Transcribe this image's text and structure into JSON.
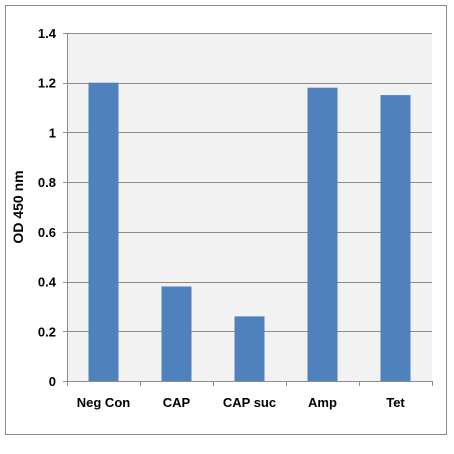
{
  "chart_data": {
    "type": "bar",
    "title": "",
    "xlabel": "",
    "ylabel": "OD 450 nm",
    "categories": [
      "Neg Con",
      "CAP",
      "CAP suc",
      "Amp",
      "Tet"
    ],
    "values": [
      1.2,
      0.38,
      0.26,
      1.18,
      1.15
    ],
    "ylim": [
      0,
      1.4
    ],
    "yticks": [
      0,
      0.2,
      0.4,
      0.6,
      0.8,
      1,
      1.2,
      1.4
    ],
    "ytick_labels": [
      "0",
      "0.2",
      "0.4",
      "0.6",
      "0.8",
      "1",
      "1.2",
      "1.4"
    ],
    "grid": true,
    "legend": "none",
    "colors": {
      "bar": "#4f81bd",
      "plot_background": "#f2f2f2",
      "grid": "#8c8c8c",
      "frame": "#8c8c8c"
    }
  }
}
